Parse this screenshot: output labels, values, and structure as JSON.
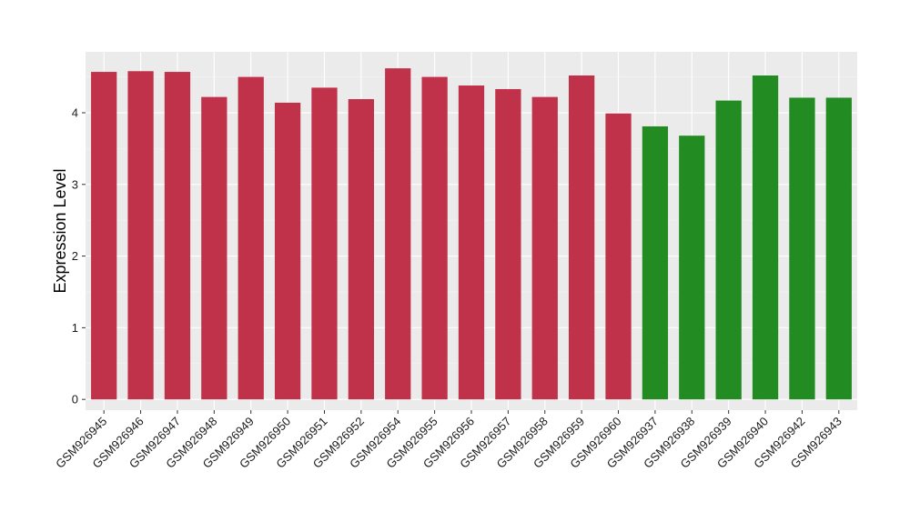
{
  "chart_data": {
    "type": "bar",
    "xlabel": "",
    "ylabel": "Expression Level",
    "ylim": [
      -0.15,
      4.85
    ],
    "yticks": [
      0,
      1,
      2,
      3,
      4
    ],
    "grid": true,
    "legend": "none",
    "categories": [
      "GSM926945",
      "GSM926946",
      "GSM926947",
      "GSM926948",
      "GSM926949",
      "GSM926950",
      "GSM926951",
      "GSM926952",
      "GSM926954",
      "GSM926955",
      "GSM926956",
      "GSM926957",
      "GSM926958",
      "GSM926959",
      "GSM926960",
      "GSM926937",
      "GSM926938",
      "GSM926939",
      "GSM926940",
      "GSM926942",
      "GSM926943"
    ],
    "values": [
      4.57,
      4.58,
      4.57,
      4.22,
      4.5,
      4.14,
      4.35,
      4.19,
      4.62,
      4.5,
      4.38,
      4.33,
      4.22,
      4.52,
      3.99,
      3.81,
      3.68,
      4.17,
      4.52,
      4.21,
      4.21
    ],
    "groups": [
      "a",
      "a",
      "a",
      "a",
      "a",
      "a",
      "a",
      "a",
      "a",
      "a",
      "a",
      "a",
      "a",
      "a",
      "a",
      "b",
      "b",
      "b",
      "b",
      "b",
      "b"
    ],
    "colors": {
      "a": "#c0314a",
      "b": "#228b22",
      "panel": "#ebebeb",
      "grid_major": "#ffffff",
      "grid_minor": "#f5f5f5",
      "text": "#1a1a1a"
    }
  }
}
